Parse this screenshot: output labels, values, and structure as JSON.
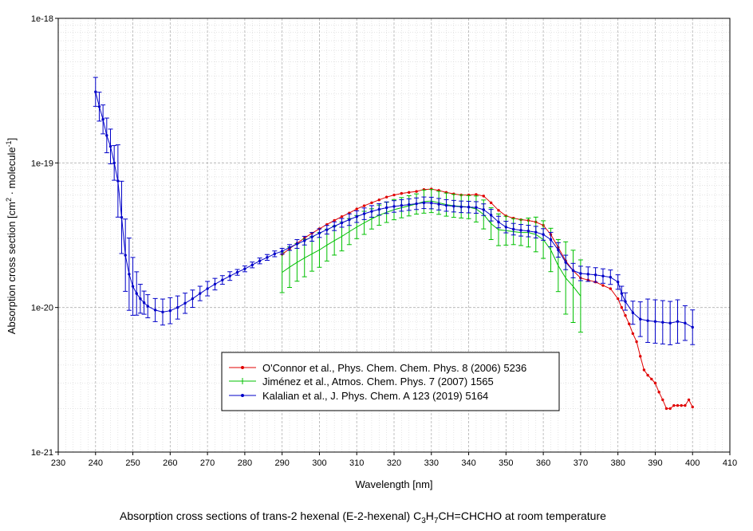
{
  "chart_data": {
    "type": "line",
    "title": "Absorption cross sections of trans-2 hexenal (E-2-hexenal) C3H7CH=CHCHO at room temperature",
    "title_parts": {
      "before": "Absorption cross sections of trans-2 hexenal (E-2-hexenal) C",
      "sub1": "3",
      "mid": "H",
      "sub2": "7",
      "after": "CH=CHCHO at room temperature"
    },
    "xlabel": "Wavelength [nm]",
    "ylabel": "Absorption cross section [cm2 · molecule-1]",
    "ylabel_parts": {
      "a": "Absorption cross section [cm",
      "sup1": "2",
      "b": " · molecule",
      "sup2": "-1",
      "c": "]"
    },
    "xlim": [
      230,
      410
    ],
    "ylim": [
      1e-21,
      1e-18
    ],
    "yscale": "log",
    "xticks": [
      230,
      240,
      250,
      260,
      270,
      280,
      290,
      300,
      310,
      320,
      330,
      340,
      350,
      360,
      370,
      380,
      390,
      400,
      410
    ],
    "xtick_labels": [
      "230",
      "240",
      "250",
      "260",
      "270",
      "280",
      "290",
      "300",
      "310",
      "320",
      "330",
      "340",
      "350",
      "360",
      "370",
      "380",
      "390",
      "400",
      "410"
    ],
    "yticks": [
      1e-21,
      1e-20,
      1e-19,
      1e-18
    ],
    "ytick_labels": [
      "1e-21",
      "1e-20",
      "1e-19",
      "1e-18"
    ],
    "grid": true,
    "legend_position": "lower-center",
    "series": [
      {
        "name": "O'Connor et al., Phys. Chem. Chem. Phys. 8 (2006) 5236",
        "color": "#e00000",
        "marker": "diamond",
        "errorbars": false,
        "points": [
          [
            290,
            2.33e-20
          ],
          [
            292,
            2.55e-20
          ],
          [
            294,
            2.78e-20
          ],
          [
            296,
            3.02e-20
          ],
          [
            298,
            3.26e-20
          ],
          [
            300,
            3.5e-20
          ],
          [
            302,
            3.75e-20
          ],
          [
            304,
            4e-20
          ],
          [
            306,
            4.25e-20
          ],
          [
            308,
            4.5e-20
          ],
          [
            310,
            4.8e-20
          ],
          [
            312,
            5.05e-20
          ],
          [
            314,
            5.3e-20
          ],
          [
            316,
            5.55e-20
          ],
          [
            318,
            5.8e-20
          ],
          [
            320,
            6e-20
          ],
          [
            322,
            6.15e-20
          ],
          [
            324,
            6.25e-20
          ],
          [
            326,
            6.35e-20
          ],
          [
            328,
            6.55e-20
          ],
          [
            330,
            6.6e-20
          ],
          [
            332,
            6.45e-20
          ],
          [
            334,
            6.25e-20
          ],
          [
            336,
            6.1e-20
          ],
          [
            338,
            6e-20
          ],
          [
            340,
            6e-20
          ],
          [
            342,
            6.05e-20
          ],
          [
            344,
            5.9e-20
          ],
          [
            346,
            5.3e-20
          ],
          [
            348,
            4.7e-20
          ],
          [
            350,
            4.3e-20
          ],
          [
            352,
            4.15e-20
          ],
          [
            354,
            4.05e-20
          ],
          [
            356,
            4e-20
          ],
          [
            358,
            3.9e-20
          ],
          [
            360,
            3.7e-20
          ],
          [
            362,
            3.2e-20
          ],
          [
            364,
            2.6e-20
          ],
          [
            366,
            2.1e-20
          ],
          [
            368,
            1.8e-20
          ],
          [
            370,
            1.6e-20
          ],
          [
            372,
            1.55e-20
          ],
          [
            374,
            1.5e-20
          ],
          [
            376,
            1.42e-20
          ],
          [
            378,
            1.35e-20
          ],
          [
            380,
            1.15e-20
          ],
          [
            381,
            1e-20
          ],
          [
            382,
            8.8e-21
          ],
          [
            383,
            7.7e-21
          ],
          [
            384,
            6.6e-21
          ],
          [
            385,
            5.8e-21
          ],
          [
            386,
            4.6e-21
          ],
          [
            387,
            3.7e-21
          ],
          [
            388,
            3.4e-21
          ],
          [
            389,
            3.2e-21
          ],
          [
            390,
            3e-21
          ],
          [
            391,
            2.6e-21
          ],
          [
            392,
            2.3e-21
          ],
          [
            393,
            2e-21
          ],
          [
            394,
            2e-21
          ],
          [
            395,
            2.1e-21
          ],
          [
            396,
            2.1e-21
          ],
          [
            397,
            2.1e-21
          ],
          [
            398,
            2.1e-21
          ],
          [
            399,
            2.3e-21
          ],
          [
            400,
            2.05e-21
          ]
        ]
      },
      {
        "name": "Jiménez et al., Atmos. Chem. Phys. 7 (2007) 1565",
        "color": "#00c000",
        "marker": "none",
        "errorbars": true,
        "points": [
          [
            290,
            1.75e-20,
            0.14
          ],
          [
            292,
            1.9e-20,
            0.14
          ],
          [
            294,
            2.05e-20,
            0.13
          ],
          [
            296,
            2.2e-20,
            0.13
          ],
          [
            298,
            2.35e-20,
            0.12
          ],
          [
            300,
            2.5e-20,
            0.12
          ],
          [
            302,
            2.7e-20,
            0.11
          ],
          [
            304,
            2.9e-20,
            0.1
          ],
          [
            306,
            3.1e-20,
            0.1
          ],
          [
            308,
            3.35e-20,
            0.09
          ],
          [
            310,
            3.6e-20,
            0.08
          ],
          [
            312,
            3.85e-20,
            0.08
          ],
          [
            314,
            4.1e-20,
            0.07
          ],
          [
            316,
            4.35e-20,
            0.07
          ],
          [
            318,
            4.55e-20,
            0.07
          ],
          [
            320,
            4.75e-20,
            0.07
          ],
          [
            322,
            4.9e-20,
            0.07
          ],
          [
            324,
            5.05e-20,
            0.07
          ],
          [
            326,
            5.2e-20,
            0.07
          ],
          [
            328,
            5.4e-20,
            0.08
          ],
          [
            330,
            5.45e-20,
            0.08
          ],
          [
            332,
            5.3e-20,
            0.08
          ],
          [
            334,
            5.15e-20,
            0.08
          ],
          [
            336,
            5.05e-20,
            0.08
          ],
          [
            338,
            5e-20,
            0.08
          ],
          [
            340,
            4.95e-20,
            0.08
          ],
          [
            342,
            4.8e-20,
            0.09
          ],
          [
            344,
            4.4e-20,
            0.1
          ],
          [
            346,
            3.8e-20,
            0.11
          ],
          [
            348,
            3.45e-20,
            0.11
          ],
          [
            350,
            3.4e-20,
            0.1
          ],
          [
            352,
            3.35e-20,
            0.09
          ],
          [
            354,
            3.3e-20,
            0.09
          ],
          [
            356,
            3.3e-20,
            0.1
          ],
          [
            358,
            3.2e-20,
            0.12
          ],
          [
            360,
            2.95e-20,
            0.13
          ],
          [
            362,
            2.5e-20,
            0.15
          ],
          [
            364,
            1.95e-20,
            0.18
          ],
          [
            366,
            1.6e-20,
            0.25
          ],
          [
            368,
            1.4e-20,
            0.25
          ],
          [
            370,
            1.2e-20,
            0.25
          ]
        ]
      },
      {
        "name": "Kalalian et al., J. Phys. Chem. A 123 (2019) 5164",
        "color": "#0000c8",
        "marker": "circle",
        "errorbars": true,
        "points": [
          [
            240,
            3.1e-19,
            0.1
          ],
          [
            241,
            2.45e-19,
            0.1
          ],
          [
            242,
            2e-19,
            0.1
          ],
          [
            243,
            1.55e-19,
            0.12
          ],
          [
            244,
            1.3e-19,
            0.12
          ],
          [
            245,
            1e-19,
            0.12
          ],
          [
            246,
            7.5e-20,
            0.25
          ],
          [
            247,
            4.2e-20,
            0.25
          ],
          [
            248,
            2.3e-20,
            0.25
          ],
          [
            249,
            1.7e-20,
            0.25
          ],
          [
            250,
            1.4e-20,
            0.2
          ],
          [
            251,
            1.25e-20,
            0.15
          ],
          [
            252,
            1.15e-20,
            0.1
          ],
          [
            253,
            1.08e-20,
            0.08
          ],
          [
            254,
            1.02e-20,
            0.08
          ],
          [
            256,
            9.6e-21,
            0.08
          ],
          [
            258,
            9.3e-21,
            0.09
          ],
          [
            260,
            9.5e-21,
            0.09
          ],
          [
            262,
            1e-20,
            0.08
          ],
          [
            264,
            1.07e-20,
            0.07
          ],
          [
            266,
            1.15e-20,
            0.06
          ],
          [
            268,
            1.25e-20,
            0.05
          ],
          [
            270,
            1.35e-20,
            0.05
          ],
          [
            272,
            1.45e-20,
            0.04
          ],
          [
            274,
            1.55e-20,
            0.03
          ],
          [
            276,
            1.65e-20,
            0.03
          ],
          [
            278,
            1.75e-20,
            0.02
          ],
          [
            280,
            1.85e-20,
            0.02
          ],
          [
            282,
            1.97e-20,
            0.02
          ],
          [
            284,
            2.1e-20,
            0.02
          ],
          [
            286,
            2.22e-20,
            0.02
          ],
          [
            288,
            2.35e-20,
            0.02
          ],
          [
            290,
            2.45e-20,
            0.02
          ],
          [
            292,
            2.6e-20,
            0.02
          ],
          [
            294,
            2.75e-20,
            0.03
          ],
          [
            296,
            2.9e-20,
            0.03
          ],
          [
            298,
            3.08e-20,
            0.03
          ],
          [
            300,
            3.27e-20,
            0.03
          ],
          [
            302,
            3.45e-20,
            0.03
          ],
          [
            304,
            3.65e-20,
            0.03
          ],
          [
            306,
            3.85e-20,
            0.03
          ],
          [
            308,
            4.05e-20,
            0.04
          ],
          [
            310,
            4.25e-20,
            0.04
          ],
          [
            312,
            4.45e-20,
            0.04
          ],
          [
            314,
            4.62e-20,
            0.04
          ],
          [
            316,
            4.77e-20,
            0.04
          ],
          [
            318,
            4.9e-20,
            0.04
          ],
          [
            320,
            5e-20,
            0.04
          ],
          [
            322,
            5.08e-20,
            0.04
          ],
          [
            324,
            5.15e-20,
            0.04
          ],
          [
            326,
            5.22e-20,
            0.04
          ],
          [
            328,
            5.3e-20,
            0.04
          ],
          [
            330,
            5.28e-20,
            0.04
          ],
          [
            332,
            5.18e-20,
            0.04
          ],
          [
            334,
            5.08e-20,
            0.04
          ],
          [
            336,
            5.02e-20,
            0.04
          ],
          [
            338,
            4.97e-20,
            0.04
          ],
          [
            340,
            4.95e-20,
            0.04
          ],
          [
            342,
            4.92e-20,
            0.04
          ],
          [
            344,
            4.75e-20,
            0.04
          ],
          [
            346,
            4.35e-20,
            0.04
          ],
          [
            348,
            3.9e-20,
            0.04
          ],
          [
            350,
            3.6e-20,
            0.04
          ],
          [
            352,
            3.48e-20,
            0.04
          ],
          [
            354,
            3.42e-20,
            0.04
          ],
          [
            356,
            3.38e-20,
            0.04
          ],
          [
            358,
            3.32e-20,
            0.04
          ],
          [
            360,
            3.2e-20,
            0.04
          ],
          [
            362,
            2.95e-20,
            0.05
          ],
          [
            364,
            2.5e-20,
            0.05
          ],
          [
            366,
            2.05e-20,
            0.05
          ],
          [
            368,
            1.8e-20,
            0.05
          ],
          [
            370,
            1.72e-20,
            0.05
          ],
          [
            372,
            1.7e-20,
            0.05
          ],
          [
            374,
            1.68e-20,
            0.05
          ],
          [
            376,
            1.65e-20,
            0.05
          ],
          [
            378,
            1.62e-20,
            0.05
          ],
          [
            380,
            1.5e-20,
            0.05
          ],
          [
            381,
            1.25e-20,
            0.05
          ],
          [
            382,
            1.1e-20,
            0.06
          ],
          [
            384,
            9.2e-21,
            0.08
          ],
          [
            386,
            8.3e-21,
            0.12
          ],
          [
            388,
            8.1e-21,
            0.15
          ],
          [
            390,
            8e-21,
            0.15
          ],
          [
            392,
            7.9e-21,
            0.15
          ],
          [
            394,
            7.8e-21,
            0.15
          ],
          [
            396,
            8e-21,
            0.15
          ],
          [
            398,
            7.8e-21,
            0.12
          ],
          [
            400,
            7.3e-21,
            0.12
          ]
        ]
      }
    ]
  }
}
